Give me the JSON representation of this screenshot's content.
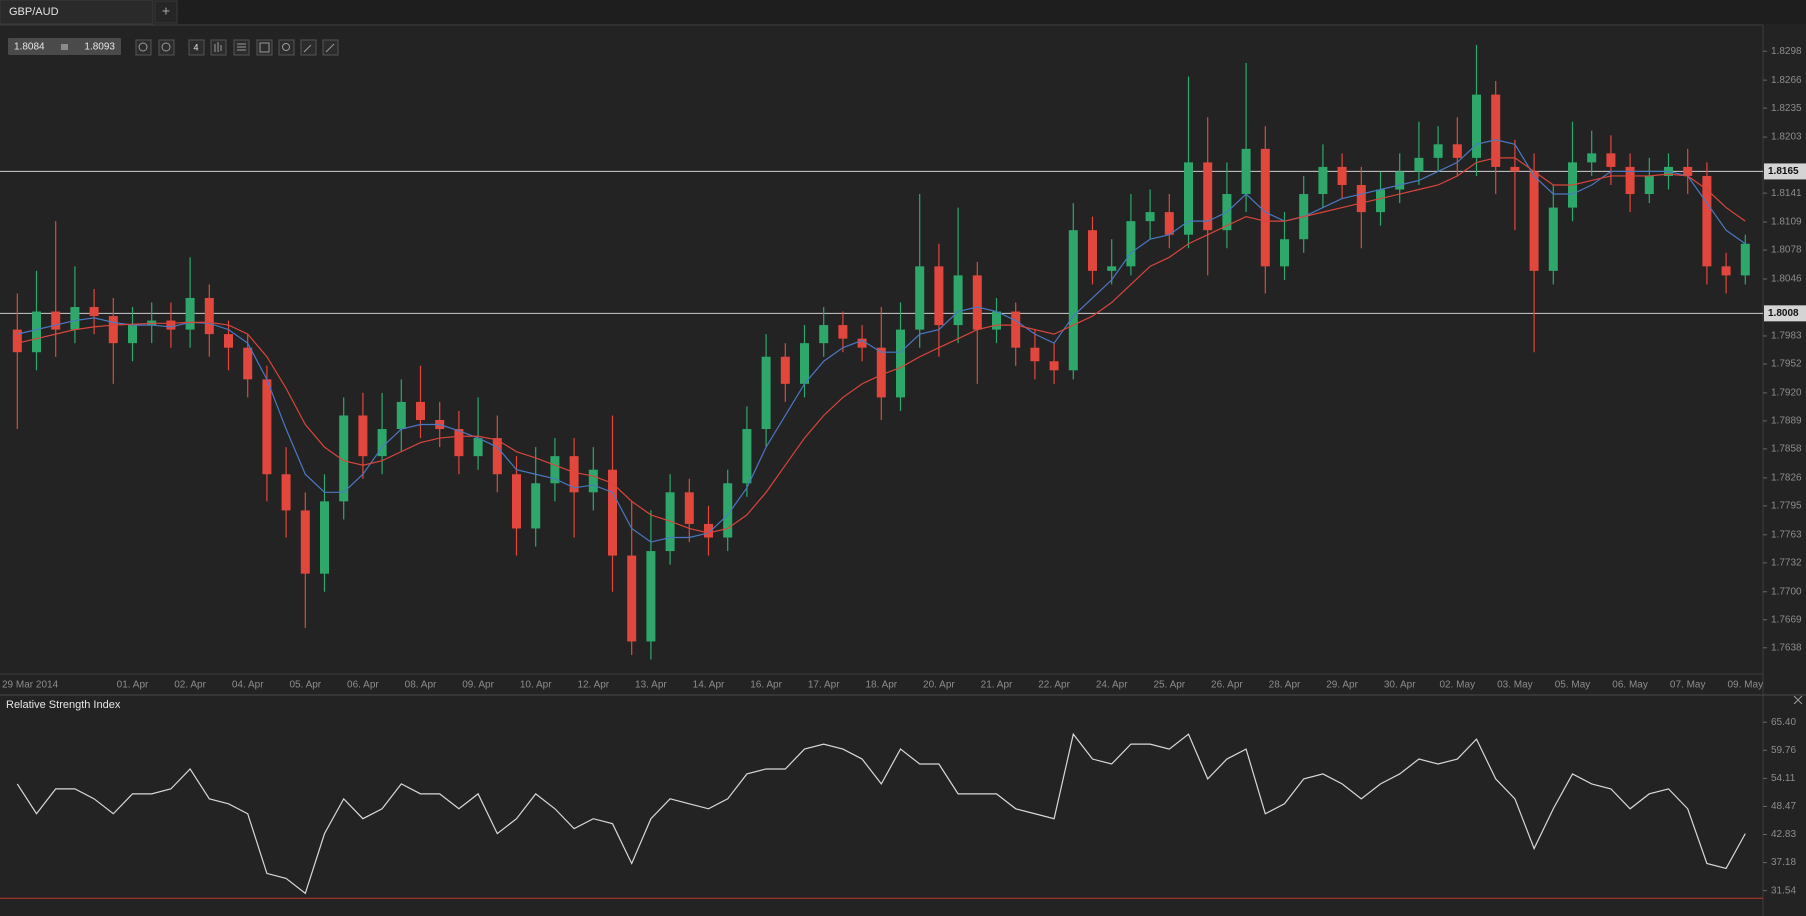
{
  "tab": {
    "title": "GBP/AUD",
    "add_button": "+"
  },
  "quote": {
    "bid": "1.8084",
    "ask": "1.8093"
  },
  "toolbar": {
    "period": "4"
  },
  "chart_data": [
    {
      "type": "candlestick",
      "categories": [
        "29 Mar 2014",
        null,
        null,
        null,
        null,
        null,
        "01. Apr",
        null,
        null,
        "02. Apr",
        null,
        null,
        "04. Apr",
        null,
        null,
        "05. Apr",
        null,
        null,
        "06. Apr",
        null,
        null,
        "08. Apr",
        null,
        null,
        "09. Apr",
        null,
        null,
        "10. Apr",
        null,
        null,
        "12. Apr",
        null,
        null,
        "13. Apr",
        null,
        null,
        "14. Apr",
        null,
        null,
        "16. Apr",
        null,
        null,
        "17. Apr",
        null,
        null,
        "18. Apr",
        null,
        null,
        "20. Apr",
        null,
        null,
        "21. Apr",
        null,
        null,
        "22. Apr",
        null,
        null,
        "24. Apr",
        null,
        null,
        "25. Apr",
        null,
        null,
        "26. Apr",
        null,
        null,
        "28. Apr",
        null,
        null,
        "29. Apr",
        null,
        null,
        "30. Apr",
        null,
        null,
        "02. May",
        null,
        null,
        "03. May",
        null,
        null,
        "05. May",
        null,
        null,
        "06. May",
        null,
        null,
        "07. May",
        null,
        null,
        "09. May"
      ],
      "open": [
        1.799,
        1.7965,
        1.801,
        1.799,
        1.8015,
        1.8005,
        1.7975,
        1.7995,
        1.8,
        1.799,
        1.8025,
        1.7985,
        1.797,
        1.7935,
        1.783,
        1.779,
        1.772,
        1.78,
        1.7895,
        1.785,
        1.788,
        1.791,
        1.789,
        1.788,
        1.785,
        1.787,
        1.783,
        1.777,
        1.782,
        1.785,
        1.781,
        1.7835,
        1.774,
        1.7645,
        1.7745,
        1.781,
        1.7775,
        1.776,
        1.782,
        1.788,
        1.796,
        1.793,
        1.7975,
        1.7995,
        1.798,
        1.797,
        1.7915,
        1.799,
        1.806,
        1.7995,
        1.805,
        1.799,
        1.801,
        1.797,
        1.7955,
        1.7945,
        1.81,
        1.8055,
        1.806,
        1.811,
        1.812,
        1.8095,
        1.8175,
        1.81,
        1.814,
        1.819,
        1.806,
        1.809,
        1.814,
        1.817,
        1.815,
        1.812,
        1.8145,
        1.8165,
        1.818,
        1.8195,
        1.818,
        1.825,
        1.817,
        1.8165,
        1.8055,
        1.8125,
        1.8175,
        1.8185,
        1.817,
        1.814,
        1.816,
        1.817,
        1.816,
        1.806,
        1.805
      ],
      "high": [
        1.803,
        1.8055,
        1.811,
        1.806,
        1.8035,
        1.8025,
        1.8015,
        1.802,
        1.802,
        1.807,
        1.804,
        1.8,
        1.7985,
        1.795,
        1.786,
        1.781,
        1.783,
        1.7915,
        1.792,
        1.792,
        1.7935,
        1.795,
        1.791,
        1.79,
        1.7915,
        1.7895,
        1.785,
        1.786,
        1.787,
        1.787,
        1.786,
        1.7895,
        1.78,
        1.779,
        1.783,
        1.7825,
        1.7795,
        1.7835,
        1.7905,
        1.7985,
        1.7975,
        1.7995,
        1.8015,
        1.801,
        1.7995,
        1.8015,
        1.802,
        1.814,
        1.8085,
        1.8125,
        1.8065,
        1.8025,
        1.802,
        1.799,
        1.7975,
        1.813,
        1.8115,
        1.809,
        1.814,
        1.8145,
        1.814,
        1.827,
        1.8225,
        1.8175,
        1.8285,
        1.8215,
        1.812,
        1.816,
        1.8195,
        1.8185,
        1.817,
        1.8165,
        1.8185,
        1.822,
        1.8215,
        1.8225,
        1.8305,
        1.8265,
        1.82,
        1.8185,
        1.815,
        1.822,
        1.821,
        1.8205,
        1.8185,
        1.818,
        1.8185,
        1.819,
        1.8175,
        1.8075,
        1.8095
      ],
      "low": [
        1.788,
        1.7945,
        1.796,
        1.7975,
        1.7985,
        1.793,
        1.7955,
        1.7975,
        1.797,
        1.797,
        1.796,
        1.7945,
        1.7915,
        1.78,
        1.776,
        1.766,
        1.77,
        1.778,
        1.7825,
        1.783,
        1.7855,
        1.787,
        1.786,
        1.783,
        1.7835,
        1.781,
        1.774,
        1.775,
        1.78,
        1.776,
        1.779,
        1.77,
        1.763,
        1.7625,
        1.773,
        1.7755,
        1.774,
        1.7745,
        1.7805,
        1.786,
        1.791,
        1.7915,
        1.796,
        1.7965,
        1.7955,
        1.789,
        1.79,
        1.797,
        1.796,
        1.7975,
        1.793,
        1.7975,
        1.795,
        1.7935,
        1.793,
        1.7935,
        1.804,
        1.804,
        1.805,
        1.809,
        1.808,
        1.808,
        1.805,
        1.808,
        1.812,
        1.803,
        1.8045,
        1.8075,
        1.8125,
        1.8135,
        1.808,
        1.8105,
        1.813,
        1.815,
        1.8165,
        1.816,
        1.816,
        1.814,
        1.81,
        1.7965,
        1.804,
        1.811,
        1.816,
        1.815,
        1.812,
        1.813,
        1.8145,
        1.814,
        1.804,
        1.803,
        1.804
      ],
      "close": [
        1.7965,
        1.801,
        1.799,
        1.8015,
        1.8005,
        1.7975,
        1.7995,
        1.8,
        1.799,
        1.8025,
        1.7985,
        1.797,
        1.7935,
        1.783,
        1.779,
        1.772,
        1.78,
        1.7895,
        1.785,
        1.788,
        1.791,
        1.789,
        1.788,
        1.785,
        1.787,
        1.783,
        1.777,
        1.782,
        1.785,
        1.781,
        1.7835,
        1.774,
        1.7645,
        1.7745,
        1.781,
        1.7775,
        1.776,
        1.782,
        1.788,
        1.796,
        1.793,
        1.7975,
        1.7995,
        1.798,
        1.797,
        1.7915,
        1.799,
        1.806,
        1.7995,
        1.805,
        1.799,
        1.801,
        1.797,
        1.7955,
        1.7945,
        1.81,
        1.8055,
        1.806,
        1.811,
        1.812,
        1.8095,
        1.8175,
        1.81,
        1.814,
        1.819,
        1.806,
        1.809,
        1.814,
        1.817,
        1.815,
        1.812,
        1.8145,
        1.8165,
        1.818,
        1.8195,
        1.818,
        1.825,
        1.817,
        1.8165,
        1.8055,
        1.8125,
        1.8175,
        1.8185,
        1.817,
        1.814,
        1.816,
        1.817,
        1.816,
        1.806,
        1.805,
        1.8085
      ],
      "up_color": "#2ea86a",
      "down_color": "#e2473d",
      "series": [
        {
          "color": "#4a78c2",
          "values": [
            1.7985,
            1.799,
            1.7995,
            1.8,
            1.8003,
            1.7998,
            1.7995,
            1.7995,
            1.7993,
            1.7998,
            1.7997,
            1.799,
            1.7975,
            1.7935,
            1.788,
            1.783,
            1.781,
            1.781,
            1.783,
            1.786,
            1.788,
            1.7885,
            1.7885,
            1.7878,
            1.787,
            1.786,
            1.7835,
            1.783,
            1.7825,
            1.7815,
            1.7818,
            1.781,
            1.777,
            1.7755,
            1.776,
            1.776,
            1.7765,
            1.7785,
            1.7815,
            1.786,
            1.7895,
            1.793,
            1.7955,
            1.797,
            1.7978,
            1.7965,
            1.7965,
            1.7985,
            1.799,
            1.801,
            1.8015,
            1.801,
            1.8,
            1.7985,
            1.7975,
            1.8005,
            1.8025,
            1.8045,
            1.8075,
            1.809,
            1.8095,
            1.811,
            1.811,
            1.812,
            1.814,
            1.812,
            1.811,
            1.8115,
            1.8125,
            1.8135,
            1.814,
            1.8145,
            1.815,
            1.8155,
            1.8165,
            1.8175,
            1.8195,
            1.82,
            1.8195,
            1.816,
            1.814,
            1.814,
            1.815,
            1.8165,
            1.8165,
            1.8165,
            1.8165,
            1.816,
            1.813,
            1.81,
            1.8085
          ]
        },
        {
          "color": "#d8453b",
          "values": [
            1.7975,
            1.798,
            1.7985,
            1.799,
            1.7993,
            1.7995,
            1.7996,
            1.7997,
            1.7997,
            1.7998,
            1.7998,
            1.7995,
            1.7985,
            1.796,
            1.7925,
            1.7885,
            1.786,
            1.7845,
            1.784,
            1.7845,
            1.7855,
            1.7865,
            1.787,
            1.7872,
            1.7872,
            1.7868,
            1.7855,
            1.7848,
            1.784,
            1.7832,
            1.7828,
            1.782,
            1.78,
            1.7785,
            1.7778,
            1.777,
            1.7765,
            1.777,
            1.7785,
            1.781,
            1.784,
            1.787,
            1.7895,
            1.7915,
            1.793,
            1.794,
            1.7948,
            1.796,
            1.797,
            1.798,
            1.799,
            1.7995,
            1.7995,
            1.799,
            1.7985,
            1.7995,
            1.8005,
            1.802,
            1.804,
            1.806,
            1.807,
            1.8085,
            1.8095,
            1.8105,
            1.8115,
            1.811,
            1.811,
            1.8115,
            1.812,
            1.8125,
            1.813,
            1.8135,
            1.814,
            1.8145,
            1.815,
            1.816,
            1.8175,
            1.818,
            1.818,
            1.8165,
            1.815,
            1.815,
            1.8155,
            1.816,
            1.816,
            1.816,
            1.8162,
            1.816,
            1.8145,
            1.8125,
            1.811
          ]
        }
      ],
      "ylim": [
        1.7609,
        1.8327
      ],
      "yticks": [
        1.8298,
        1.8266,
        1.8235,
        1.8203,
        1.8141,
        1.8109,
        1.8078,
        1.8046,
        1.7983,
        1.7952,
        {
          "value": 1.792,
          "label": "1.7920"
        },
        1.7889,
        1.7858,
        1.7826,
        1.7795,
        1.7763,
        1.7732,
        {
          "value": 1.77,
          "label": "1.7700"
        },
        1.7669,
        1.7638
      ],
      "hlines": [
        1.8165,
        1.8008
      ],
      "hline_color": "#cfcfcf",
      "hline_labels": true
    },
    {
      "type": "line",
      "title": "Relative Strength Index",
      "series": [
        {
          "color": "#d8d8d8",
          "values": [
            53,
            47,
            52,
            52,
            50,
            47,
            51,
            51,
            52,
            56,
            50,
            49,
            47,
            35,
            34,
            31,
            43,
            50,
            46,
            48,
            53,
            51,
            51,
            48,
            51,
            43,
            46,
            51,
            48,
            44,
            46,
            45,
            37,
            46,
            50,
            49,
            48,
            50,
            55,
            56,
            56,
            60,
            61,
            60,
            58,
            53,
            60,
            57,
            57,
            51,
            51,
            51,
            48,
            47,
            46,
            63,
            58,
            57,
            61,
            61,
            60,
            63,
            54,
            58,
            60,
            47,
            49,
            54,
            55,
            53,
            50,
            53,
            55,
            58,
            57,
            58,
            62,
            54,
            50,
            40,
            48,
            55,
            53,
            52,
            48,
            51,
            52,
            48,
            37,
            36,
            43
          ]
        }
      ],
      "ylim": [
        26.44,
        70.27
      ],
      "yticks": [
        {
          "value": 65.4,
          "label": "65.40"
        },
        59.76,
        54.11,
        48.47,
        42.83,
        37.18,
        31.54
      ],
      "hlines": [
        30
      ],
      "hline_color": "#c0392b",
      "hline_labels": false
    }
  ]
}
